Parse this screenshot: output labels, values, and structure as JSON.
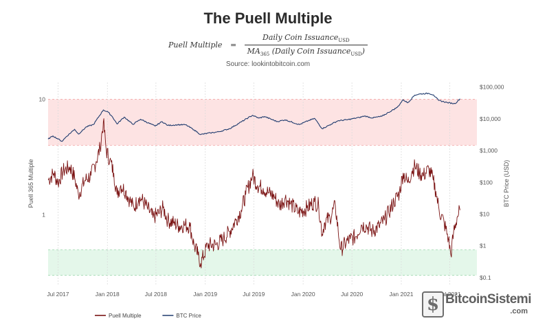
{
  "header": {
    "title": "The Puell Multiple",
    "formula": {
      "lhs": "Puell Multiple",
      "equals": "=",
      "numerator": "Daily Coin Issuance",
      "numerator_sub": "USD",
      "denominator_prefix": "MA",
      "denominator_prefix_sub": "365",
      "denominator": "(Daily Coin Issuance",
      "denominator_sub": "USD",
      "denominator_suffix": ")"
    },
    "source": "Source: lookintobitcoin.com"
  },
  "watermark": {
    "text": "BitcoinSistemi",
    "sub": ".com",
    "logo_glyph": "$"
  },
  "chart_data": {
    "type": "line",
    "x_tick_labels": [
      "Jul 2017",
      "Jan 2018",
      "Jul 2018",
      "Jan 2019",
      "Jul 2019",
      "Jan 2020",
      "Jul 2020",
      "Jan 2021",
      "Jul 2021"
    ],
    "x_tick_dates": [
      "2017-07-01",
      "2018-01-01",
      "2018-07-01",
      "2019-01-01",
      "2019-07-01",
      "2020-01-01",
      "2020-07-01",
      "2021-01-01",
      "2021-07-01"
    ],
    "x_range": [
      "2017-05-25",
      "2021-10-10"
    ],
    "y_left": {
      "label": "Puell 365 Multiple",
      "scale": "log",
      "range": [
        0.25,
        14
      ],
      "tick_labels": [
        "1",
        "10"
      ],
      "tick_values": [
        1,
        10
      ]
    },
    "y_right": {
      "label": "BTC Price (USD)",
      "scale": "log",
      "range": [
        0.06,
        140000
      ],
      "tick_labels": [
        "$0.1",
        "$1",
        "$10",
        "$100",
        "$1,000",
        "$10,000",
        "$100,000"
      ],
      "tick_values": [
        0.1,
        1,
        10,
        100,
        1000,
        10000,
        100000
      ]
    },
    "bands": [
      {
        "name": "high-zone",
        "from": 4,
        "to": 10,
        "color": "#fde3e3",
        "edge": "#f2a5a5"
      },
      {
        "name": "low-zone",
        "from": 0.3,
        "to": 0.5,
        "color": "#e4f7ea",
        "edge": "#9fd9b0"
      }
    ],
    "grid": true,
    "legend_position": "bottom-center",
    "series": [
      {
        "name": "Puell Multiple",
        "axis": "left",
        "color": "#7a1212",
        "points": [
          [
            "2017-05-25",
            2.0
          ],
          [
            "2017-06-15",
            2.3
          ],
          [
            "2017-07-01",
            1.9
          ],
          [
            "2017-07-20",
            2.4
          ],
          [
            "2017-08-15",
            2.6
          ],
          [
            "2017-09-01",
            2.1
          ],
          [
            "2017-09-15",
            1.5
          ],
          [
            "2017-10-10",
            2.0
          ],
          [
            "2017-11-01",
            2.2
          ],
          [
            "2017-11-20",
            2.9
          ],
          [
            "2017-12-05",
            3.8
          ],
          [
            "2017-12-17",
            6.4
          ],
          [
            "2017-12-28",
            3.6
          ],
          [
            "2018-01-10",
            3.0
          ],
          [
            "2018-01-25",
            2.3
          ],
          [
            "2018-02-06",
            1.5
          ],
          [
            "2018-02-20",
            1.8
          ],
          [
            "2018-03-10",
            1.6
          ],
          [
            "2018-03-25",
            1.35
          ],
          [
            "2018-04-10",
            1.15
          ],
          [
            "2018-04-28",
            1.4
          ],
          [
            "2018-05-10",
            1.35
          ],
          [
            "2018-05-30",
            1.15
          ],
          [
            "2018-06-20",
            0.95
          ],
          [
            "2018-07-15",
            1.05
          ],
          [
            "2018-07-28",
            1.15
          ],
          [
            "2018-08-14",
            0.9
          ],
          [
            "2018-09-05",
            0.85
          ],
          [
            "2018-09-25",
            0.8
          ],
          [
            "2018-10-15",
            0.82
          ],
          [
            "2018-11-05",
            0.8
          ],
          [
            "2018-11-20",
            0.55
          ],
          [
            "2018-12-05",
            0.45
          ],
          [
            "2018-12-15",
            0.38
          ],
          [
            "2019-01-10",
            0.55
          ],
          [
            "2019-02-10",
            0.55
          ],
          [
            "2019-03-10",
            0.62
          ],
          [
            "2019-04-02",
            0.72
          ],
          [
            "2019-04-25",
            0.9
          ],
          [
            "2019-05-15",
            1.1
          ],
          [
            "2019-06-01",
            1.5
          ],
          [
            "2019-06-26",
            2.2
          ],
          [
            "2019-07-15",
            1.8
          ],
          [
            "2019-08-05",
            1.7
          ],
          [
            "2019-08-25",
            1.55
          ],
          [
            "2019-09-15",
            1.45
          ],
          [
            "2019-10-05",
            1.2
          ],
          [
            "2019-10-26",
            1.4
          ],
          [
            "2019-11-15",
            1.25
          ],
          [
            "2019-12-15",
            1.05
          ],
          [
            "2020-01-15",
            1.15
          ],
          [
            "2020-02-12",
            1.3
          ],
          [
            "2020-02-28",
            1.2
          ],
          [
            "2020-03-12",
            0.68
          ],
          [
            "2020-03-20",
            0.85
          ],
          [
            "2020-04-10",
            0.95
          ],
          [
            "2020-04-30",
            1.2
          ],
          [
            "2020-05-11",
            0.72
          ],
          [
            "2020-05-20",
            0.5
          ],
          [
            "2020-06-10",
            0.58
          ],
          [
            "2020-06-25",
            0.62
          ],
          [
            "2020-07-15",
            0.65
          ],
          [
            "2020-08-05",
            0.82
          ],
          [
            "2020-08-25",
            0.8
          ],
          [
            "2020-09-15",
            0.72
          ],
          [
            "2020-10-10",
            0.8
          ],
          [
            "2020-10-30",
            0.9
          ],
          [
            "2020-11-15",
            1.05
          ],
          [
            "2020-12-05",
            1.3
          ],
          [
            "2020-12-25",
            1.55
          ],
          [
            "2021-01-08",
            2.3
          ],
          [
            "2021-01-25",
            1.9
          ],
          [
            "2021-02-10",
            2.4
          ],
          [
            "2021-02-21",
            2.65
          ],
          [
            "2021-03-10",
            2.3
          ],
          [
            "2021-03-25",
            2.2
          ],
          [
            "2021-04-14",
            2.5
          ],
          [
            "2021-04-30",
            2.0
          ],
          [
            "2021-05-10",
            1.6
          ],
          [
            "2021-05-22",
            1.1
          ],
          [
            "2021-06-10",
            0.85
          ],
          [
            "2021-06-26",
            0.62
          ],
          [
            "2021-07-05",
            0.45
          ],
          [
            "2021-07-15",
            0.7
          ],
          [
            "2021-07-28",
            0.95
          ],
          [
            "2021-08-08",
            1.1
          ]
        ]
      },
      {
        "name": "BTC Price",
        "axis": "right",
        "color": "#1f3b6e",
        "points": [
          [
            "2017-05-25",
            2300
          ],
          [
            "2017-06-12",
            2900
          ],
          [
            "2017-07-16",
            1950
          ],
          [
            "2017-08-01",
            2750
          ],
          [
            "2017-09-01",
            4700
          ],
          [
            "2017-09-15",
            3300
          ],
          [
            "2017-10-15",
            5600
          ],
          [
            "2017-11-10",
            6600
          ],
          [
            "2017-12-17",
            19100
          ],
          [
            "2018-01-05",
            16000
          ],
          [
            "2018-01-20",
            11500
          ],
          [
            "2018-02-06",
            6900
          ],
          [
            "2018-03-05",
            11400
          ],
          [
            "2018-04-06",
            6700
          ],
          [
            "2018-05-05",
            9700
          ],
          [
            "2018-06-28",
            5900
          ],
          [
            "2018-07-24",
            8200
          ],
          [
            "2018-08-14",
            6200
          ],
          [
            "2018-09-20",
            6500
          ],
          [
            "2018-10-20",
            6500
          ],
          [
            "2018-11-20",
            4500
          ],
          [
            "2018-12-15",
            3200
          ],
          [
            "2019-01-20",
            3600
          ],
          [
            "2019-02-20",
            3900
          ],
          [
            "2019-04-02",
            4900
          ],
          [
            "2019-05-15",
            8000
          ],
          [
            "2019-06-26",
            12900
          ],
          [
            "2019-07-20",
            10500
          ],
          [
            "2019-08-10",
            11800
          ],
          [
            "2019-09-26",
            8200
          ],
          [
            "2019-10-26",
            9300
          ],
          [
            "2019-12-18",
            6600
          ],
          [
            "2020-01-20",
            8700
          ],
          [
            "2020-02-13",
            10300
          ],
          [
            "2020-03-12",
            4900
          ],
          [
            "2020-04-15",
            6800
          ],
          [
            "2020-05-10",
            8700
          ],
          [
            "2020-06-15",
            9400
          ],
          [
            "2020-07-28",
            11000
          ],
          [
            "2020-08-17",
            12300
          ],
          [
            "2020-09-15",
            10700
          ],
          [
            "2020-10-20",
            12000
          ],
          [
            "2020-11-15",
            16000
          ],
          [
            "2020-12-17",
            23000
          ],
          [
            "2021-01-08",
            40000
          ],
          [
            "2021-01-25",
            32000
          ],
          [
            "2021-02-20",
            56000
          ],
          [
            "2021-03-13",
            61000
          ],
          [
            "2021-04-14",
            63500
          ],
          [
            "2021-05-01",
            57000
          ],
          [
            "2021-05-20",
            38000
          ],
          [
            "2021-06-22",
            32500
          ],
          [
            "2021-07-20",
            30000
          ],
          [
            "2021-08-08",
            43000
          ]
        ]
      }
    ]
  }
}
